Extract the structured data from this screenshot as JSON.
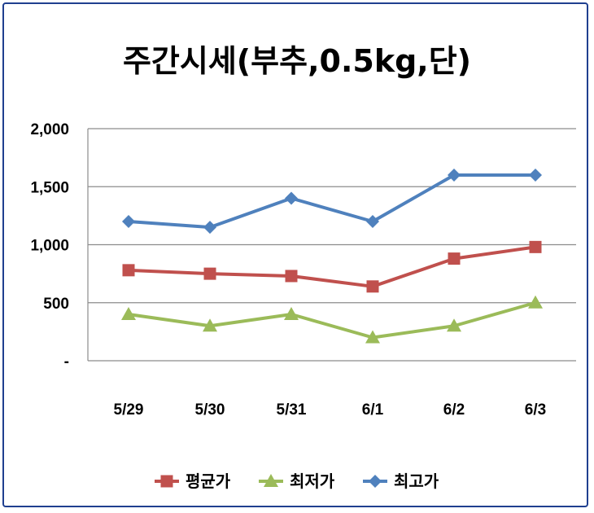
{
  "chart_data": {
    "type": "line",
    "title": "주간시세(부추,0.5kg,단)",
    "categories": [
      "5/29",
      "5/30",
      "5/31",
      "6/1",
      "6/2",
      "6/3"
    ],
    "ylim": [
      0,
      2000
    ],
    "yticks": [
      0,
      500,
      1000,
      1500,
      2000
    ],
    "ytick_labels": [
      "-",
      "500",
      "1,000",
      "1,500",
      "2,000"
    ],
    "grid": true,
    "legend": "bottom",
    "series": [
      {
        "name": "평균가",
        "values": [
          780,
          750,
          730,
          640,
          880,
          980
        ],
        "color": "#c0504d",
        "marker": "square"
      },
      {
        "name": "최저가",
        "values": [
          400,
          300,
          400,
          200,
          300,
          500
        ],
        "color": "#9bbb59",
        "marker": "triangle"
      },
      {
        "name": "최고가",
        "values": [
          1200,
          1150,
          1400,
          1200,
          1600,
          1600
        ],
        "color": "#4f81bd",
        "marker": "diamond"
      }
    ]
  }
}
